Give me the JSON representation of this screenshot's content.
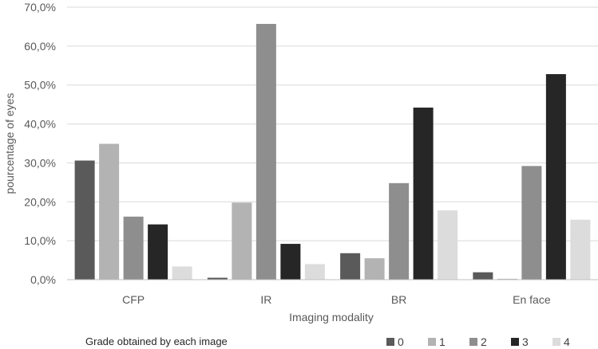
{
  "chart_data": {
    "type": "bar",
    "title": "",
    "xlabel": "Imaging modality",
    "ylabel": "pourcentage of eyes",
    "categories": [
      "CFP",
      "IR",
      "BR",
      "En face"
    ],
    "ylim": [
      0,
      70
    ],
    "yticks": [
      "0,0%",
      "10,0%",
      "20,0%",
      "30,0%",
      "40,0%",
      "50,0%",
      "60,0%",
      "70,0%"
    ],
    "grid": true,
    "legend_title": "Grade obtained by each image",
    "legend_position": "bottom",
    "series": [
      {
        "name": "0",
        "color": "#5a5a5a",
        "values": [
          30.6,
          0.5,
          6.8,
          1.9
        ]
      },
      {
        "name": "1",
        "color": "#b3b3b3",
        "values": [
          34.9,
          19.8,
          5.5,
          0.0
        ]
      },
      {
        "name": "2",
        "color": "#8e8e8e",
        "values": [
          16.2,
          65.7,
          24.8,
          29.2
        ]
      },
      {
        "name": "3",
        "color": "#262626",
        "values": [
          14.2,
          9.2,
          44.2,
          52.8
        ]
      },
      {
        "name": "4",
        "color": "#dcdcdc",
        "values": [
          3.4,
          4.0,
          17.8,
          15.4
        ]
      }
    ]
  }
}
